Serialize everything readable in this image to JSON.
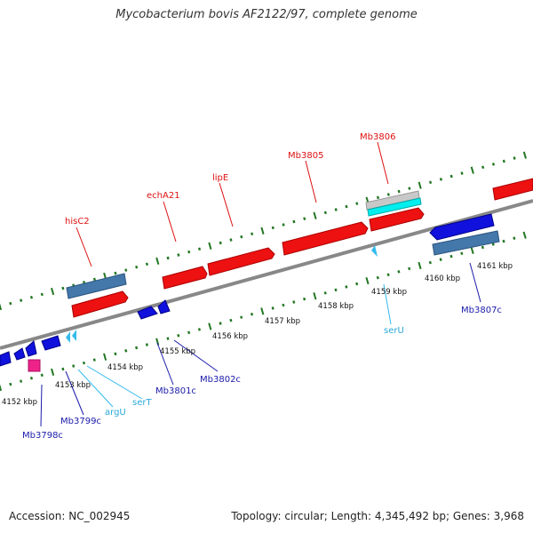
{
  "title": "Mycobacterium bovis AF2122/97, complete genome",
  "footer": {
    "accession": "Accession: NC_002945",
    "summary": "Topology: circular; Length: 4,345,492 bp; Genes: 3,968"
  },
  "colors": {
    "forward_cds": "#ee1111",
    "reverse_cds": "#1111dd",
    "trna": "#33bbee",
    "pseudogene": "#ee2288",
    "rrna_like": "#00eeee",
    "misc_feature": "#c8c8c8",
    "steelblue_feature": "#4477aa",
    "backbone": "#888888",
    "tick": "#227722"
  },
  "kbp_labels": [
    "4152 kbp",
    "4153 kbp",
    "4154 kbp",
    "4155 kbp",
    "4156 kbp",
    "4157 kbp",
    "4158 kbp",
    "4159 kbp",
    "4160 kbp",
    "4161 kbp"
  ],
  "gene_labels": {
    "forward": [
      "hisC2",
      "echA21",
      "lipE",
      "Mb3805",
      "Mb3806"
    ],
    "reverse": [
      "Mb3798c",
      "Mb3799c",
      "Mb3801c",
      "Mb3802c",
      "Mb3807c"
    ],
    "trna": [
      "argU",
      "serT",
      "serU"
    ]
  }
}
